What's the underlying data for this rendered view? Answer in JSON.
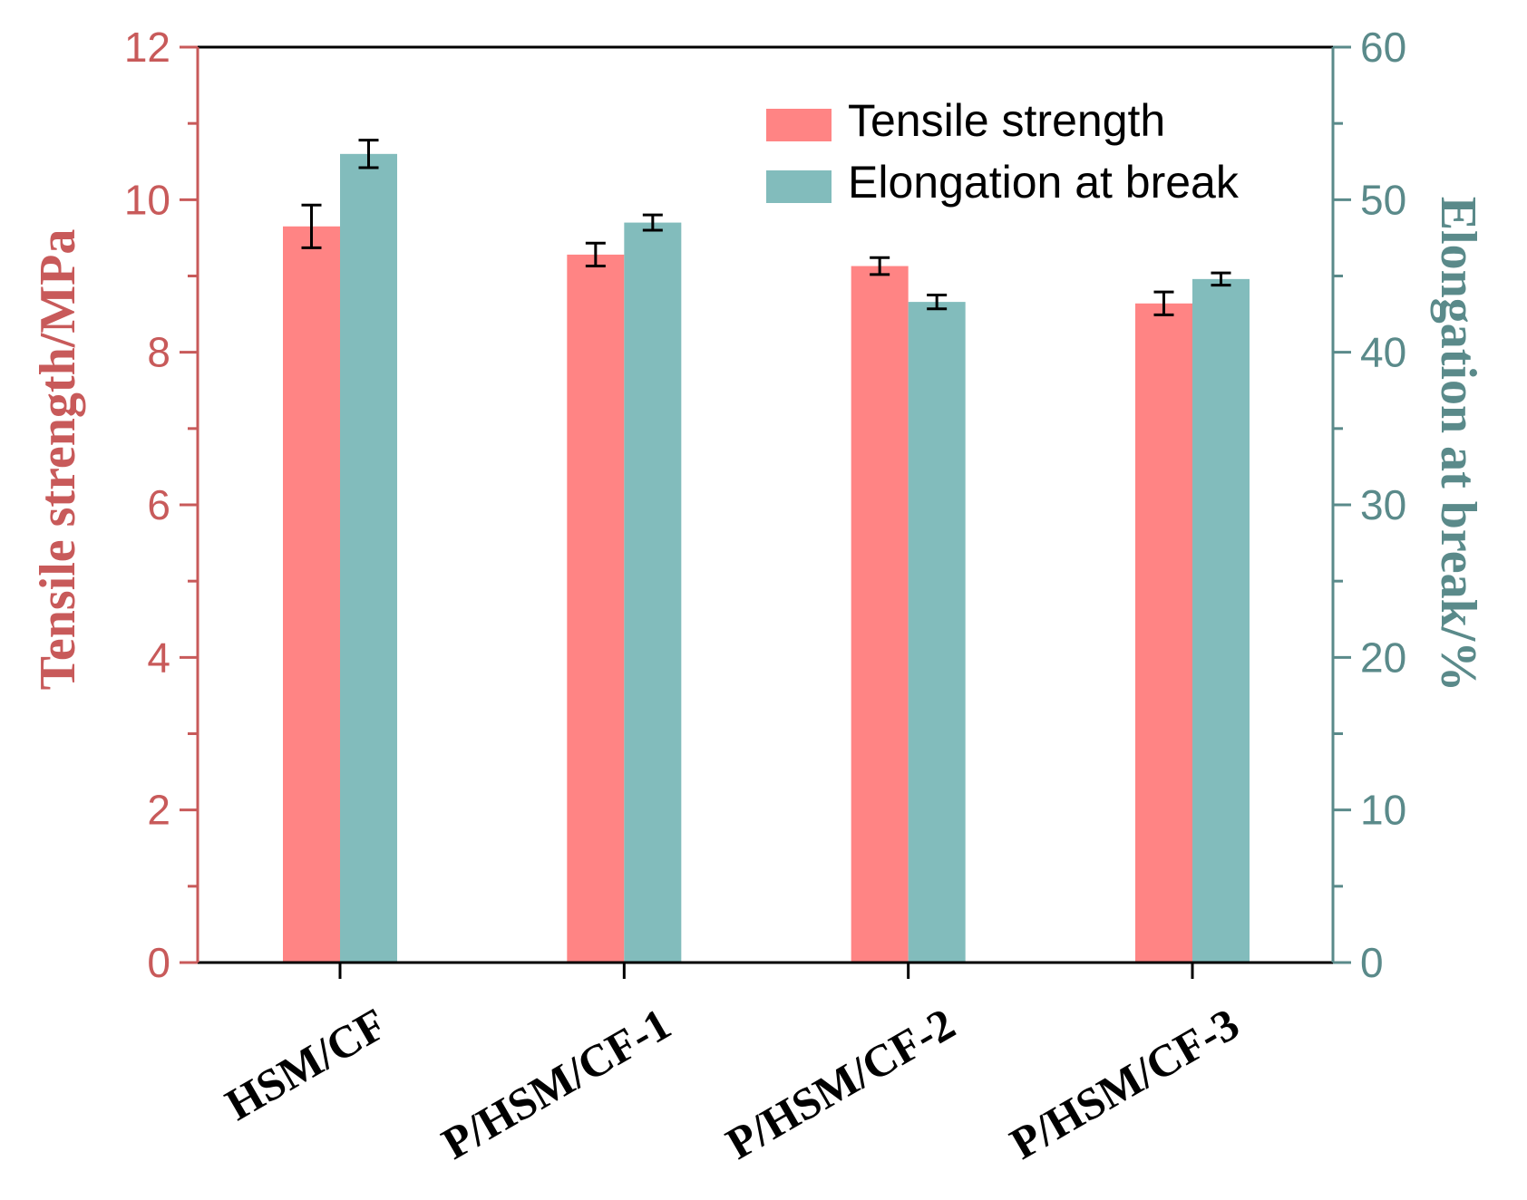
{
  "chart_data": {
    "type": "bar",
    "categories": [
      "HSM/CF",
      "P/HSM/CF-1",
      "P/HSM/CF-2",
      "P/HSM/CF-3"
    ],
    "series": [
      {
        "name": "Tensile strength",
        "axis": "left",
        "values": [
          9.65,
          9.28,
          9.13,
          8.64
        ],
        "errors": [
          0.28,
          0.15,
          0.11,
          0.15
        ],
        "color": "#ff8484"
      },
      {
        "name": "Elongation at break",
        "axis": "right",
        "values": [
          53.0,
          48.5,
          43.3,
          44.8
        ],
        "errors": [
          0.9,
          0.5,
          0.45,
          0.4
        ],
        "color": "#82bcbc"
      }
    ],
    "ylabel": "Tensile strength/MPa",
    "ylabel_right": "Elongation at break/%",
    "ylim": [
      0,
      12
    ],
    "ylim_right": [
      0,
      60
    ],
    "yticks": [
      0,
      2,
      4,
      6,
      8,
      10,
      12
    ],
    "yticks_right": [
      0,
      10,
      20,
      30,
      40,
      50,
      60
    ],
    "left_axis_color": "#c85a5a",
    "right_axis_color": "#5a8a8a",
    "legend_position": "top-right"
  }
}
